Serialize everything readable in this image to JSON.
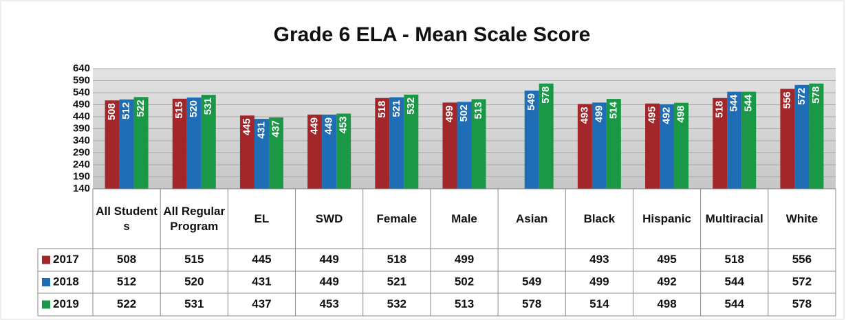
{
  "chart_data": {
    "type": "bar",
    "title": "Grade 6 ELA - Mean Scale Score",
    "categories": [
      "All Students",
      "All Regular Program",
      "EL",
      "SWD",
      "Female",
      "Male",
      "Asian",
      "Black",
      "Hispanic",
      "Multiracial",
      "White"
    ],
    "series": [
      {
        "name": "2017",
        "color": "#a3262b",
        "values": [
          508,
          515,
          445,
          449,
          518,
          499,
          null,
          493,
          495,
          518,
          556
        ]
      },
      {
        "name": "2018",
        "color": "#1f6db5",
        "values": [
          512,
          520,
          431,
          449,
          521,
          502,
          549,
          499,
          492,
          544,
          572
        ]
      },
      {
        "name": "2019",
        "color": "#1b9845",
        "values": [
          522,
          531,
          437,
          453,
          532,
          513,
          578,
          514,
          498,
          544,
          578
        ]
      }
    ],
    "ylim": [
      140,
      640
    ],
    "yticks": [
      140,
      190,
      240,
      290,
      340,
      390,
      440,
      490,
      540,
      590,
      640
    ],
    "grid": true
  }
}
